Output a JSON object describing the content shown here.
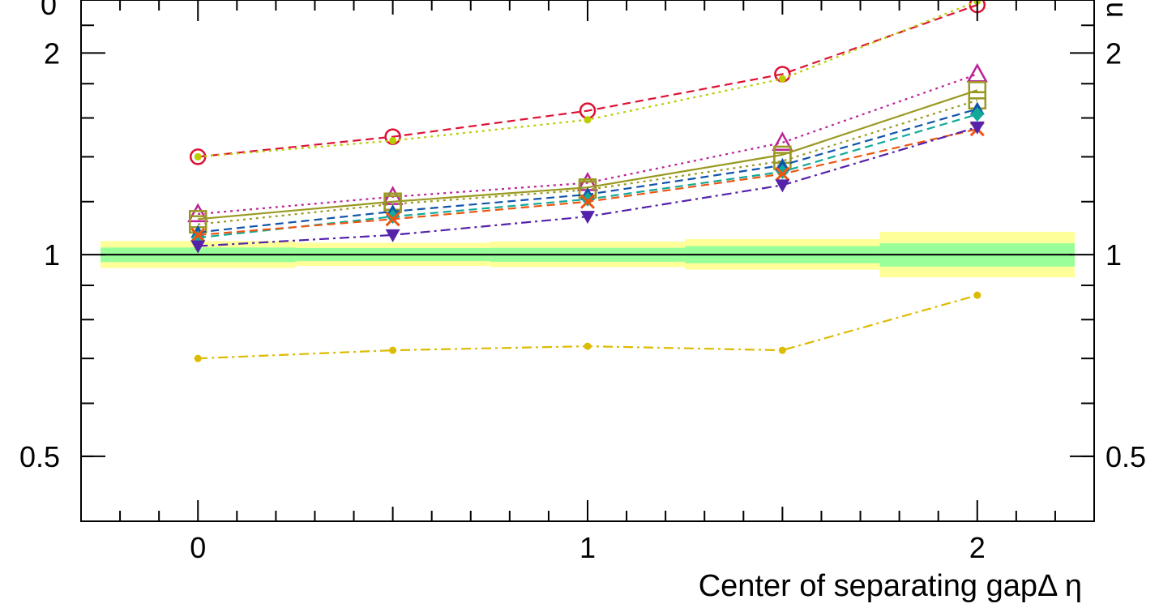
{
  "chart_data": {
    "type": "line",
    "xlabel": "Center of separating gapΔ η",
    "ylabel": "",
    "xlim": [
      -0.3,
      2.3
    ],
    "ylim": [
      0.4,
      2.4
    ],
    "y_scale": "log",
    "x_ticks": [
      "0",
      "1",
      "2"
    ],
    "y_ticks_left": [
      "2",
      "1",
      "0.5"
    ],
    "y_ticks_right": [
      "2",
      "1",
      "0.5"
    ],
    "x": [
      0,
      0.5,
      1,
      1.5,
      2
    ],
    "bands": [
      {
        "name": "",
        "color": "#ffff99",
        "x0": [
          -0.25,
          0.25,
          0.75,
          1.25,
          1.75
        ],
        "x1": [
          0.25,
          0.75,
          1.25,
          1.75,
          2.25
        ],
        "low": [
          0.955,
          0.962,
          0.958,
          0.95,
          0.925
        ],
        "high": [
          1.048,
          1.042,
          1.046,
          1.055,
          1.082
        ]
      },
      {
        "name": "",
        "color": "#99ff99",
        "x0": [
          -0.25,
          0.25,
          0.75,
          1.25,
          1.75
        ],
        "x1": [
          0.25,
          0.75,
          1.25,
          1.75,
          2.25
        ],
        "low": [
          0.975,
          0.978,
          0.976,
          0.971,
          0.96
        ],
        "high": [
          1.025,
          1.023,
          1.024,
          1.03,
          1.04
        ]
      }
    ],
    "series": [
      {
        "values": [
          1.4,
          1.5,
          1.64,
          1.86,
          2.36
        ],
        "color": "#dd1133",
        "dash": "10,6",
        "marker": "open-circle"
      },
      {
        "values": [
          1.4,
          1.48,
          1.59,
          1.83,
          2.39
        ],
        "color": "#bbcc00",
        "dash": "3,5",
        "marker": "dot"
      },
      {
        "values": [
          1.15,
          1.22,
          1.28,
          1.47,
          1.86
        ],
        "color": "#bb2299",
        "dash": "3,5",
        "marker": "open-triangle-up"
      },
      {
        "values": [
          1.13,
          1.2,
          1.26,
          1.41,
          1.76
        ],
        "color": "#999922",
        "dash": "",
        "marker": "open-square"
      },
      {
        "values": [
          1.11,
          1.19,
          1.25,
          1.38,
          1.7
        ],
        "color": "#999922",
        "dash": "3,5",
        "marker": "open-square"
      },
      {
        "values": [
          1.08,
          1.16,
          1.23,
          1.36,
          1.65
        ],
        "color": "#1155aa",
        "dash": "10,6",
        "marker": "triangle-up"
      },
      {
        "values": [
          1.06,
          1.14,
          1.21,
          1.33,
          1.62
        ],
        "color": "#11aa99",
        "dash": "10,6",
        "marker": "diamond"
      },
      {
        "values": [
          1.07,
          1.13,
          1.2,
          1.32,
          1.54
        ],
        "color": "#ee5511",
        "dash": "10,6",
        "marker": "cross"
      },
      {
        "values": [
          1.03,
          1.07,
          1.14,
          1.27,
          1.55
        ],
        "color": "#5522aa",
        "dash": "12,5,3,5",
        "marker": "triangle-down"
      },
      {
        "values": [
          0.7,
          0.72,
          0.73,
          0.72,
          0.87
        ],
        "color": "#ddbb00",
        "dash": "12,5,3,5",
        "marker": "dot"
      }
    ],
    "reference_line": 1.0,
    "grid": false,
    "legend": "none"
  }
}
